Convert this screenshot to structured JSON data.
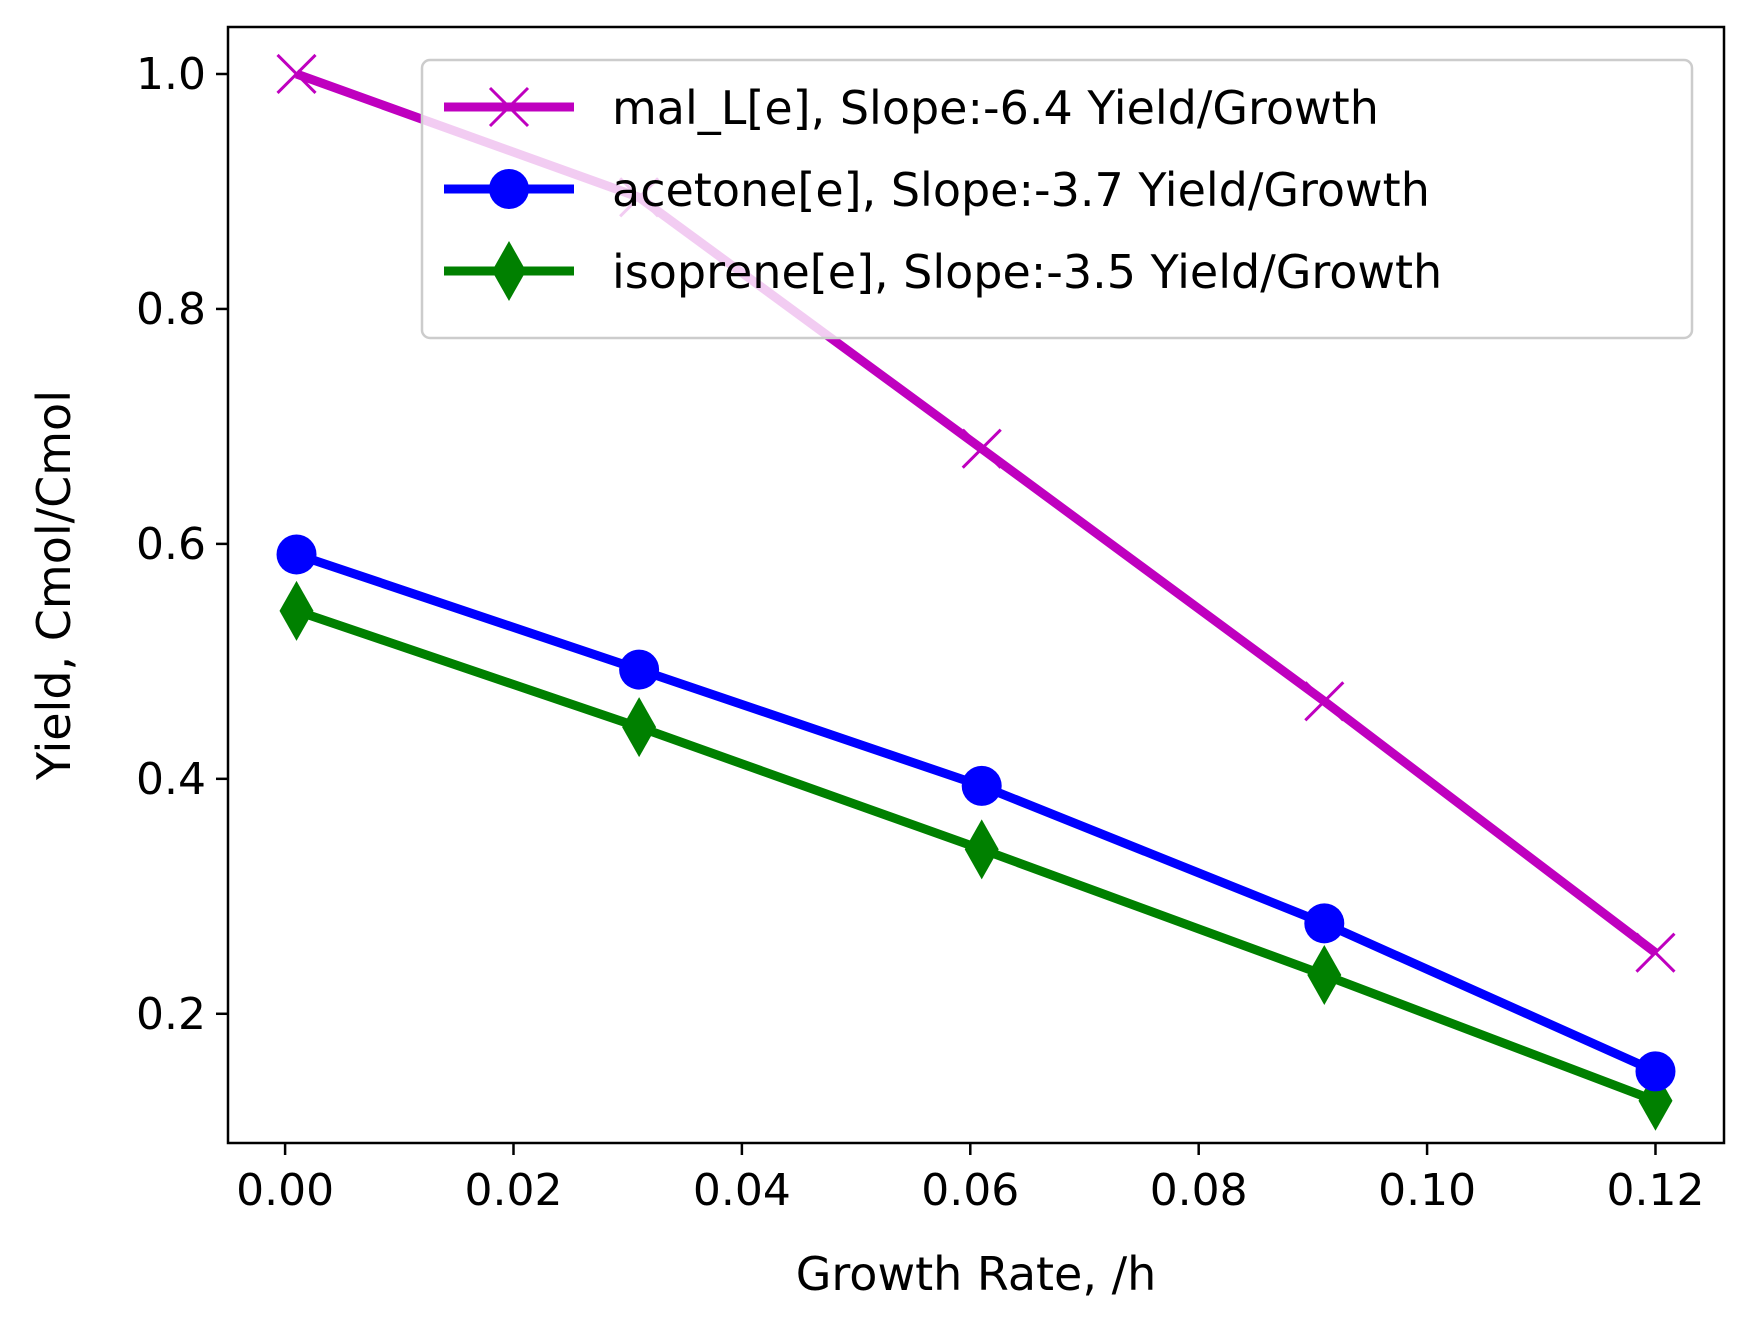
{
  "chart_data": {
    "type": "line",
    "title": "",
    "xlabel": "Growth Rate, /h",
    "ylabel": "Yield, Cmol/Cmol",
    "xlim": [
      -0.005,
      0.126
    ],
    "ylim": [
      0.09,
      1.04
    ],
    "x_ticks": [
      "0.00",
      "0.02",
      "0.04",
      "0.06",
      "0.08",
      "0.10",
      "0.12"
    ],
    "y_ticks": [
      "0.2",
      "0.4",
      "0.6",
      "0.8",
      "1.0"
    ],
    "grid": false,
    "legend_position": "top-right",
    "x": [
      0.001,
      0.031,
      0.061,
      0.091,
      0.12
    ],
    "series": [
      {
        "name": "mal_L[e], Slope:-6.4 Yield/Growth",
        "marker": "x",
        "color": "#bf00bf",
        "values": [
          1.0,
          0.895,
          0.681,
          0.466,
          0.252
        ]
      },
      {
        "name": "acetone[e], Slope:-3.7 Yield/Growth",
        "marker": "circle",
        "color": "#0000ff",
        "values": [
          0.591,
          0.493,
          0.394,
          0.277,
          0.151
        ]
      },
      {
        "name": "isoprene[e], Slope:-3.5 Yield/Growth",
        "marker": "diamond",
        "color": "#008000",
        "values": [
          0.543,
          0.444,
          0.34,
          0.233,
          0.126
        ]
      }
    ]
  }
}
